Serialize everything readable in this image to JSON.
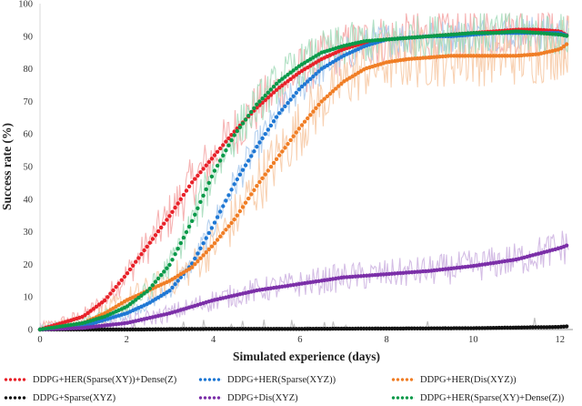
{
  "chart_data": {
    "type": "line",
    "title": "",
    "xlabel": "Simulated experience (days)",
    "ylabel": "Success rate (%)",
    "xlim": [
      0,
      12.3
    ],
    "ylim": [
      0,
      100
    ],
    "xticks": [
      0,
      2,
      4,
      6,
      8,
      10,
      12
    ],
    "yticks": [
      0,
      10,
      20,
      30,
      40,
      50,
      60,
      70,
      80,
      90,
      100
    ],
    "grid": false,
    "legend_position": "bottom",
    "series": [
      {
        "name": "DDPG+HER(Sparse(XY))+Dense(Z)",
        "color": "#e8222a",
        "raw_color": "#f4a6a6",
        "x": [
          0,
          1,
          1.5,
          2,
          2.5,
          3,
          3.5,
          4,
          4.5,
          5,
          5.5,
          6,
          6.5,
          7,
          7.5,
          8,
          8.5,
          9,
          9.5,
          10,
          10.5,
          11,
          11.5,
          12,
          12.2
        ],
        "y": [
          0,
          4,
          9,
          17,
          26,
          35,
          45,
          53,
          61,
          68,
          74,
          79,
          83,
          86,
          88,
          89,
          89.5,
          90,
          90.5,
          91,
          91.5,
          92,
          92,
          91.5,
          90
        ]
      },
      {
        "name": "DDPG+HER(Sparse(XYZ))",
        "color": "#1f78d4",
        "raw_color": "#a9c9ec",
        "x": [
          0,
          1,
          1.5,
          2,
          2.5,
          3,
          3.5,
          4,
          4.5,
          5,
          5.5,
          6,
          6.5,
          7,
          7.5,
          8,
          8.5,
          9,
          9.5,
          10,
          10.5,
          11,
          11.5,
          12,
          12.2
        ],
        "y": [
          0,
          1,
          3,
          5,
          8,
          12,
          20,
          32,
          45,
          56,
          66,
          74,
          80,
          84,
          87,
          89,
          89.5,
          90,
          90,
          90.5,
          91,
          91,
          91,
          91,
          90
        ]
      },
      {
        "name": "DDPG+HER(Dis(XYZ))",
        "color": "#f07e26",
        "raw_color": "#f7c9a5",
        "x": [
          0,
          1,
          1.5,
          2,
          2.5,
          3,
          3.5,
          4,
          4.5,
          5,
          5.5,
          6,
          6.5,
          7,
          7.5,
          8,
          8.5,
          9,
          9.5,
          10,
          10.5,
          11,
          11.5,
          12,
          12.2
        ],
        "y": [
          0,
          2,
          5,
          9,
          12,
          15,
          19,
          26,
          34,
          44,
          53,
          62,
          70,
          76,
          80,
          82,
          83,
          83.5,
          84,
          84,
          84,
          84,
          84.5,
          86,
          88
        ]
      },
      {
        "name": "DDPG+Sparse(XYZ)",
        "color": "#111111",
        "raw_color": "#b5b5b5",
        "x": [
          0,
          2,
          4,
          6,
          8,
          10,
          12,
          12.2
        ],
        "y": [
          0,
          0,
          0.2,
          0.2,
          0.3,
          0.4,
          0.8,
          1
        ]
      },
      {
        "name": "DDPG+Dis(XYZ)",
        "color": "#7b2fa8",
        "raw_color": "#cdb1e0",
        "x": [
          0,
          1,
          2,
          3,
          4,
          5,
          6,
          7,
          8,
          9,
          10,
          11,
          12,
          12.2
        ],
        "y": [
          0,
          0.5,
          2,
          5,
          9,
          12,
          14,
          16,
          17,
          18,
          19.5,
          21.5,
          25,
          26
        ]
      },
      {
        "name": "DDPG+HER(Sparse(XY)+Dense(Z))",
        "color": "#0a9a4a",
        "raw_color": "#a5dcbb",
        "x": [
          0,
          1,
          1.5,
          2,
          2.5,
          3,
          3.5,
          4,
          4.5,
          5,
          5.5,
          6,
          6.5,
          7,
          7.5,
          8,
          8.5,
          9,
          9.5,
          10,
          10.5,
          11,
          11.5,
          12,
          12.2
        ],
        "y": [
          0,
          2,
          4,
          7,
          12,
          20,
          33,
          48,
          60,
          69,
          76,
          81,
          85,
          87,
          88.5,
          89,
          89.5,
          90,
          90.5,
          91,
          91,
          91.5,
          91,
          90.5,
          90
        ]
      }
    ]
  }
}
